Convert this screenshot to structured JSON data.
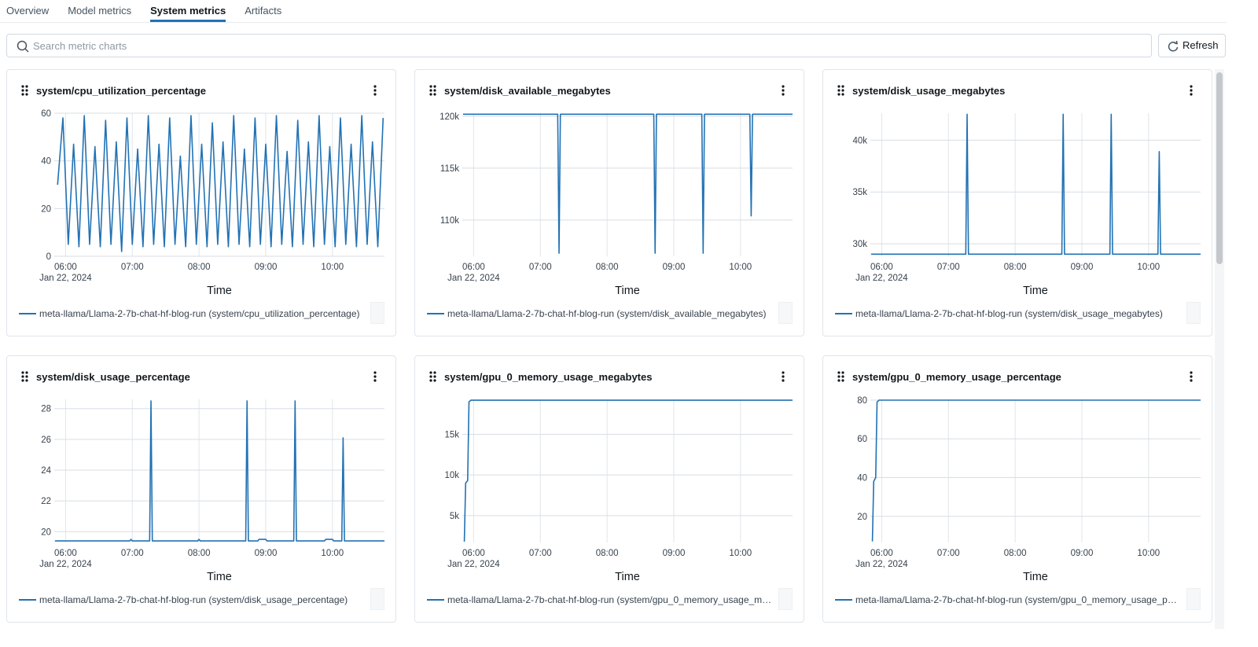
{
  "tabs": [
    "Overview",
    "Model metrics",
    "System metrics",
    "Artifacts"
  ],
  "active_tab": 2,
  "search_placeholder": "Search metric charts",
  "refresh_button": "Refresh",
  "chart_data": [
    {
      "type": "line",
      "title": "system/cpu_utilization_percentage",
      "x_label": "Time",
      "date_label": "Jan 22, 2024",
      "grid": true,
      "xlim": [
        5.83,
        10.78
      ],
      "xticks": [
        {
          "value": 6,
          "label": "06:00"
        },
        {
          "value": 7,
          "label": "07:00"
        },
        {
          "value": 8,
          "label": "08:00"
        },
        {
          "value": 9,
          "label": "09:00"
        },
        {
          "value": 10,
          "label": "10:00"
        }
      ],
      "ylim": [
        0,
        60
      ],
      "yticks": [
        0,
        20,
        40,
        60
      ],
      "x": [
        5.88,
        5.96,
        6.04,
        6.12,
        6.2,
        6.28,
        6.36,
        6.44,
        6.52,
        6.6,
        6.68,
        6.76,
        6.84,
        6.92,
        7.0,
        7.08,
        7.16,
        7.24,
        7.32,
        7.4,
        7.48,
        7.56,
        7.64,
        7.72,
        7.8,
        7.88,
        7.96,
        8.04,
        8.12,
        8.2,
        8.28,
        8.36,
        8.44,
        8.52,
        8.6,
        8.68,
        8.76,
        8.84,
        8.92,
        9.0,
        9.08,
        9.16,
        9.24,
        9.32,
        9.4,
        9.48,
        9.56,
        9.64,
        9.72,
        9.8,
        9.88,
        9.96,
        10.04,
        10.12,
        10.2,
        10.28,
        10.36,
        10.44,
        10.52,
        10.6,
        10.68,
        10.76
      ],
      "series": [
        {
          "name": "meta-llama/Llama-2-7b-chat-hf-blog-run (system/cpu_utilization_percentage)",
          "color": "#2272b4",
          "values": [
            30,
            58,
            5,
            47,
            4,
            59,
            5,
            46,
            4,
            57,
            5,
            48,
            2,
            58,
            5,
            45,
            4,
            59,
            5,
            47,
            4,
            58,
            5,
            42,
            4,
            59,
            5,
            47,
            4,
            56,
            5,
            48,
            4,
            59,
            5,
            45,
            4,
            58,
            5,
            47,
            4,
            59,
            5,
            44,
            4,
            57,
            5,
            48,
            4,
            59,
            5,
            46,
            4,
            58,
            5,
            47,
            4,
            59,
            5,
            48,
            4,
            58
          ]
        }
      ]
    },
    {
      "type": "line",
      "title": "system/disk_available_megabytes",
      "x_label": "Time",
      "date_label": "Jan 22, 2024",
      "grid": true,
      "xlim": [
        5.83,
        10.78
      ],
      "xticks": [
        {
          "value": 6,
          "label": "06:00"
        },
        {
          "value": 7,
          "label": "07:00"
        },
        {
          "value": 8,
          "label": "08:00"
        },
        {
          "value": 9,
          "label": "09:00"
        },
        {
          "value": 10,
          "label": "10:00"
        }
      ],
      "ylim": [
        106500,
        120300
      ],
      "yticks": [
        {
          "value": 110000,
          "label": "110k"
        },
        {
          "value": 115000,
          "label": "115k"
        },
        {
          "value": 120000,
          "label": "120k"
        }
      ],
      "x": [
        5.84,
        7.26,
        7.28,
        7.3,
        8.7,
        8.72,
        8.74,
        9.42,
        9.44,
        9.46,
        10.14,
        10.16,
        10.18,
        10.78
      ],
      "series": [
        {
          "name": "meta-llama/Llama-2-7b-chat-hf-blog-run (system/disk_available_megabytes)",
          "color": "#2272b4",
          "values": [
            120200,
            120200,
            106800,
            120200,
            120200,
            106800,
            120200,
            120200,
            106800,
            120200,
            120200,
            110400,
            120200,
            120200
          ]
        }
      ]
    },
    {
      "type": "line",
      "title": "system/disk_usage_megabytes",
      "x_label": "Time",
      "date_label": "Jan 22, 2024",
      "grid": true,
      "xlim": [
        5.83,
        10.78
      ],
      "xticks": [
        {
          "value": 6,
          "label": "06:00"
        },
        {
          "value": 7,
          "label": "07:00"
        },
        {
          "value": 8,
          "label": "08:00"
        },
        {
          "value": 9,
          "label": "09:00"
        },
        {
          "value": 10,
          "label": "10:00"
        }
      ],
      "ylim": [
        28800,
        42600
      ],
      "yticks": [
        {
          "value": 30000,
          "label": "30k"
        },
        {
          "value": 35000,
          "label": "35k"
        },
        {
          "value": 40000,
          "label": "40k"
        }
      ],
      "x": [
        5.84,
        7.26,
        7.28,
        7.3,
        8.7,
        8.72,
        8.74,
        9.42,
        9.44,
        9.46,
        10.14,
        10.16,
        10.18,
        10.78
      ],
      "series": [
        {
          "name": "meta-llama/Llama-2-7b-chat-hf-blog-run (system/disk_usage_megabytes)",
          "color": "#2272b4",
          "values": [
            29000,
            29000,
            42500,
            29000,
            29000,
            42500,
            29000,
            29000,
            42500,
            29000,
            29000,
            38900,
            29000,
            29000
          ]
        }
      ]
    },
    {
      "type": "line",
      "title": "system/disk_usage_percentage",
      "x_label": "Time",
      "date_label": "Jan 22, 2024",
      "grid": true,
      "xlim": [
        5.83,
        10.78
      ],
      "xticks": [
        {
          "value": 6,
          "label": "06:00"
        },
        {
          "value": 7,
          "label": "07:00"
        },
        {
          "value": 8,
          "label": "08:00"
        },
        {
          "value": 9,
          "label": "09:00"
        },
        {
          "value": 10,
          "label": "10:00"
        }
      ],
      "ylim": [
        19.3,
        28.6
      ],
      "yticks": [
        20,
        22,
        24,
        26,
        28
      ],
      "x": [
        5.84,
        6.96,
        6.98,
        7.0,
        7.26,
        7.28,
        7.3,
        7.98,
        8.0,
        8.02,
        8.7,
        8.72,
        8.74,
        8.88,
        8.9,
        9.0,
        9.02,
        9.42,
        9.44,
        9.46,
        9.88,
        9.9,
        10.0,
        10.02,
        10.14,
        10.16,
        10.18,
        10.78
      ],
      "series": [
        {
          "name": "meta-llama/Llama-2-7b-chat-hf-blog-run (system/disk_usage_percentage)",
          "color": "#2272b4",
          "values": [
            19.4,
            19.4,
            19.5,
            19.4,
            19.4,
            28.5,
            19.4,
            19.4,
            19.5,
            19.4,
            19.4,
            28.5,
            19.4,
            19.4,
            19.5,
            19.5,
            19.4,
            19.4,
            28.5,
            19.4,
            19.4,
            19.5,
            19.5,
            19.4,
            19.4,
            26.1,
            19.4,
            19.4
          ]
        }
      ]
    },
    {
      "type": "line",
      "title": "system/gpu_0_memory_usage_megabytes",
      "x_label": "Time",
      "date_label": "Jan 22, 2024",
      "grid": true,
      "xlim": [
        5.83,
        10.78
      ],
      "xticks": [
        {
          "value": 6,
          "label": "06:00"
        },
        {
          "value": 7,
          "label": "07:00"
        },
        {
          "value": 8,
          "label": "08:00"
        },
        {
          "value": 9,
          "label": "09:00"
        },
        {
          "value": 10,
          "label": "10:00"
        }
      ],
      "ylim": [
        1700,
        19300
      ],
      "yticks": [
        {
          "value": 5000,
          "label": "5k"
        },
        {
          "value": 10000,
          "label": "10k"
        },
        {
          "value": 15000,
          "label": "15k"
        }
      ],
      "x": [
        5.86,
        5.88,
        5.91,
        5.93,
        5.96,
        10.78
      ],
      "series": [
        {
          "name": "meta-llama/Llama-2-7b-chat-hf-blog-run (system/gpu_0_memory_usage_me…",
          "color": "#2272b4",
          "values": [
            1800,
            9000,
            9300,
            19000,
            19200,
            19200
          ]
        }
      ]
    },
    {
      "type": "line",
      "title": "system/gpu_0_memory_usage_percentage",
      "x_label": "Time",
      "date_label": "Jan 22, 2024",
      "grid": true,
      "xlim": [
        5.83,
        10.78
      ],
      "xticks": [
        {
          "value": 6,
          "label": "06:00"
        },
        {
          "value": 7,
          "label": "07:00"
        },
        {
          "value": 8,
          "label": "08:00"
        },
        {
          "value": 9,
          "label": "09:00"
        },
        {
          "value": 10,
          "label": "10:00"
        }
      ],
      "ylim": [
        6.5,
        80.4
      ],
      "yticks": [
        20,
        40,
        60,
        80
      ],
      "x": [
        5.86,
        5.88,
        5.91,
        5.93,
        5.96,
        10.78
      ],
      "series": [
        {
          "name": "meta-llama/Llama-2-7b-chat-hf-blog-run (system/gpu_0_memory_usage_per…",
          "color": "#2272b4",
          "values": [
            7,
            38,
            40,
            79,
            80,
            80
          ]
        }
      ]
    }
  ]
}
